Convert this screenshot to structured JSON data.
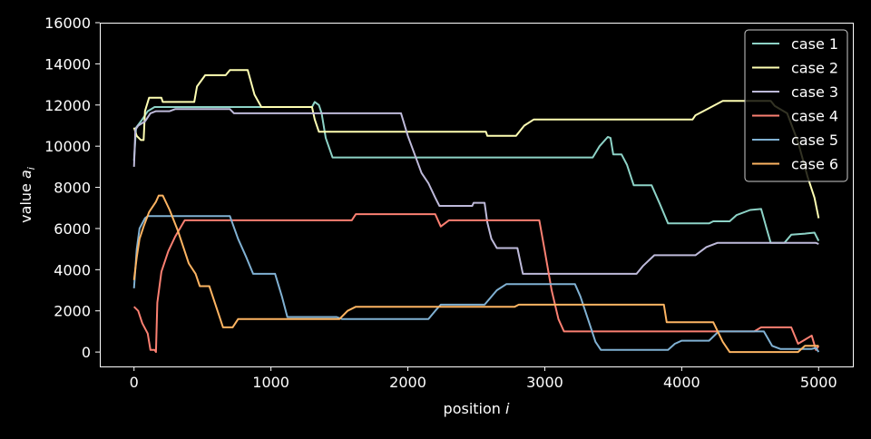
{
  "chart_data": {
    "type": "line",
    "xlabel": "position",
    "xlabel_var": "i",
    "ylabel": "value",
    "ylabel_var": "a",
    "ylabel_sub": "i",
    "xlim": [
      -250,
      5250
    ],
    "ylim": [
      -700,
      16000
    ],
    "xticks": [
      0,
      1000,
      2000,
      3000,
      4000,
      5000
    ],
    "xtick_labels": [
      "0",
      "1000",
      "2000",
      "3000",
      "4000",
      "5000"
    ],
    "yticks": [
      0,
      2000,
      4000,
      6000,
      8000,
      10000,
      12000,
      14000,
      16000
    ],
    "ytick_labels": [
      "0",
      "2000",
      "4000",
      "6000",
      "8000",
      "10000",
      "12000",
      "14000",
      "16000"
    ],
    "grid": false,
    "legend_position": "top-right",
    "background": "#000000",
    "series": [
      {
        "name": "case 1",
        "color": "#8dd3c7",
        "points": [
          [
            0,
            9300
          ],
          [
            15,
            10900
          ],
          [
            60,
            11300
          ],
          [
            100,
            11700
          ],
          [
            150,
            11900
          ],
          [
            1300,
            11900
          ],
          [
            1320,
            12150
          ],
          [
            1350,
            12000
          ],
          [
            1370,
            11600
          ],
          [
            1400,
            10400
          ],
          [
            1450,
            9450
          ],
          [
            3350,
            9450
          ],
          [
            3400,
            10000
          ],
          [
            3460,
            10450
          ],
          [
            3480,
            10400
          ],
          [
            3500,
            9600
          ],
          [
            3560,
            9600
          ],
          [
            3600,
            9100
          ],
          [
            3650,
            8100
          ],
          [
            3780,
            8100
          ],
          [
            3840,
            7200
          ],
          [
            3900,
            6250
          ],
          [
            4200,
            6250
          ],
          [
            4230,
            6350
          ],
          [
            4350,
            6350
          ],
          [
            4400,
            6650
          ],
          [
            4500,
            6900
          ],
          [
            4580,
            6950
          ],
          [
            4620,
            6000
          ],
          [
            4650,
            5300
          ],
          [
            4750,
            5300
          ],
          [
            4800,
            5700
          ],
          [
            4900,
            5750
          ],
          [
            4970,
            5800
          ],
          [
            5000,
            5400
          ]
        ]
      },
      {
        "name": "case 2",
        "color": "#ffffb3",
        "points": [
          [
            0,
            10900
          ],
          [
            20,
            10500
          ],
          [
            50,
            10300
          ],
          [
            70,
            10300
          ],
          [
            80,
            11700
          ],
          [
            110,
            12350
          ],
          [
            200,
            12350
          ],
          [
            210,
            12150
          ],
          [
            440,
            12150
          ],
          [
            460,
            12900
          ],
          [
            520,
            13450
          ],
          [
            670,
            13450
          ],
          [
            700,
            13700
          ],
          [
            830,
            13700
          ],
          [
            880,
            12500
          ],
          [
            930,
            11900
          ],
          [
            1300,
            11900
          ],
          [
            1320,
            11300
          ],
          [
            1350,
            10700
          ],
          [
            2570,
            10700
          ],
          [
            2580,
            10500
          ],
          [
            2790,
            10500
          ],
          [
            2850,
            11000
          ],
          [
            2920,
            11300
          ],
          [
            4080,
            11300
          ],
          [
            4100,
            11500
          ],
          [
            4200,
            11850
          ],
          [
            4300,
            12200
          ],
          [
            4650,
            12200
          ],
          [
            4680,
            11950
          ],
          [
            4770,
            11600
          ],
          [
            4850,
            10200
          ],
          [
            4920,
            8500
          ],
          [
            4970,
            7500
          ],
          [
            5000,
            6500
          ]
        ]
      },
      {
        "name": "case 3",
        "color": "#bebada",
        "points": [
          [
            0,
            9000
          ],
          [
            10,
            10800
          ],
          [
            30,
            11000
          ],
          [
            80,
            11200
          ],
          [
            120,
            11600
          ],
          [
            160,
            11700
          ],
          [
            260,
            11700
          ],
          [
            300,
            11800
          ],
          [
            700,
            11800
          ],
          [
            730,
            11600
          ],
          [
            1950,
            11600
          ],
          [
            2000,
            10500
          ],
          [
            2100,
            8700
          ],
          [
            2150,
            8200
          ],
          [
            2200,
            7500
          ],
          [
            2230,
            7100
          ],
          [
            2470,
            7100
          ],
          [
            2480,
            7250
          ],
          [
            2560,
            7250
          ],
          [
            2580,
            6300
          ],
          [
            2610,
            5500
          ],
          [
            2650,
            5050
          ],
          [
            2800,
            5050
          ],
          [
            2840,
            3800
          ],
          [
            3670,
            3800
          ],
          [
            3720,
            4200
          ],
          [
            3800,
            4700
          ],
          [
            4100,
            4700
          ],
          [
            4180,
            5100
          ],
          [
            4260,
            5300
          ],
          [
            4980,
            5300
          ],
          [
            5000,
            5250
          ]
        ]
      },
      {
        "name": "case 4",
        "color": "#fb8072",
        "points": [
          [
            0,
            2200
          ],
          [
            30,
            2000
          ],
          [
            60,
            1400
          ],
          [
            100,
            900
          ],
          [
            120,
            100
          ],
          [
            150,
            100
          ],
          [
            160,
            0
          ],
          [
            170,
            2400
          ],
          [
            200,
            3900
          ],
          [
            250,
            4900
          ],
          [
            300,
            5600
          ],
          [
            370,
            6400
          ],
          [
            1590,
            6400
          ],
          [
            1620,
            6700
          ],
          [
            2200,
            6700
          ],
          [
            2240,
            6100
          ],
          [
            2300,
            6400
          ],
          [
            2960,
            6400
          ],
          [
            3000,
            4900
          ],
          [
            3050,
            3000
          ],
          [
            3100,
            1600
          ],
          [
            3140,
            1000
          ],
          [
            4530,
            1000
          ],
          [
            4580,
            1200
          ],
          [
            4800,
            1200
          ],
          [
            4850,
            400
          ],
          [
            4950,
            800
          ],
          [
            4980,
            100
          ],
          [
            5000,
            300
          ]
        ]
      },
      {
        "name": "case 5",
        "color": "#80b1d3",
        "points": [
          [
            0,
            3100
          ],
          [
            20,
            5000
          ],
          [
            40,
            6000
          ],
          [
            80,
            6500
          ],
          [
            100,
            6600
          ],
          [
            700,
            6600
          ],
          [
            760,
            5500
          ],
          [
            820,
            4600
          ],
          [
            870,
            3800
          ],
          [
            1030,
            3800
          ],
          [
            1080,
            2700
          ],
          [
            1120,
            1700
          ],
          [
            1480,
            1700
          ],
          [
            1520,
            1600
          ],
          [
            2150,
            1600
          ],
          [
            2200,
            2000
          ],
          [
            2240,
            2300
          ],
          [
            2560,
            2300
          ],
          [
            2650,
            3000
          ],
          [
            2720,
            3300
          ],
          [
            3220,
            3300
          ],
          [
            3260,
            2700
          ],
          [
            3330,
            1300
          ],
          [
            3370,
            500
          ],
          [
            3410,
            100
          ],
          [
            3900,
            100
          ],
          [
            3950,
            400
          ],
          [
            4000,
            550
          ],
          [
            4200,
            550
          ],
          [
            4270,
            1000
          ],
          [
            4600,
            1000
          ],
          [
            4660,
            300
          ],
          [
            4720,
            150
          ],
          [
            4950,
            150
          ],
          [
            4980,
            200
          ],
          [
            5000,
            0
          ]
        ]
      },
      {
        "name": "case 6",
        "color": "#fdb462",
        "points": [
          [
            0,
            3500
          ],
          [
            20,
            4600
          ],
          [
            40,
            5500
          ],
          [
            70,
            6100
          ],
          [
            110,
            6800
          ],
          [
            160,
            7300
          ],
          [
            180,
            7600
          ],
          [
            210,
            7600
          ],
          [
            260,
            6900
          ],
          [
            320,
            5900
          ],
          [
            400,
            4300
          ],
          [
            450,
            3800
          ],
          [
            480,
            3200
          ],
          [
            550,
            3200
          ],
          [
            620,
            1800
          ],
          [
            650,
            1200
          ],
          [
            720,
            1200
          ],
          [
            760,
            1600
          ],
          [
            1500,
            1600
          ],
          [
            1560,
            2000
          ],
          [
            1620,
            2200
          ],
          [
            2780,
            2200
          ],
          [
            2810,
            2300
          ],
          [
            3870,
            2300
          ],
          [
            3890,
            1450
          ],
          [
            4230,
            1450
          ],
          [
            4300,
            500
          ],
          [
            4350,
            0
          ],
          [
            4850,
            0
          ],
          [
            4900,
            300
          ],
          [
            5000,
            300
          ]
        ]
      }
    ]
  }
}
